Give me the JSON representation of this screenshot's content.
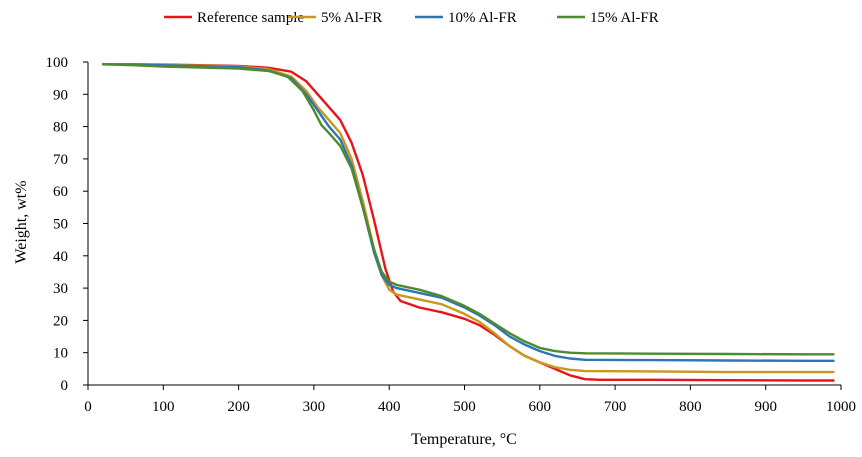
{
  "chart_data": {
    "type": "line",
    "title": "",
    "xlabel": "Temperature, °C",
    "ylabel": "Weight, wt%",
    "xlim": [
      0,
      1000
    ],
    "ylim": [
      0,
      100
    ],
    "x_ticks": [
      0,
      100,
      200,
      300,
      400,
      500,
      600,
      700,
      800,
      900,
      1000
    ],
    "y_ticks": [
      0,
      10,
      20,
      30,
      40,
      50,
      60,
      70,
      80,
      90,
      100
    ],
    "grid": false,
    "legend_position": "top",
    "series": [
      {
        "name": "Reference sample",
        "color": "#e8141b",
        "points": [
          [
            20,
            99.3
          ],
          [
            60,
            99.3
          ],
          [
            100,
            99.2
          ],
          [
            150,
            99
          ],
          [
            200,
            98.8
          ],
          [
            240,
            98.2
          ],
          [
            270,
            97
          ],
          [
            290,
            94
          ],
          [
            305,
            90
          ],
          [
            320,
            86
          ],
          [
            335,
            82
          ],
          [
            350,
            75
          ],
          [
            365,
            65
          ],
          [
            380,
            51
          ],
          [
            395,
            36
          ],
          [
            405,
            29
          ],
          [
            415,
            26
          ],
          [
            440,
            24
          ],
          [
            470,
            22.5
          ],
          [
            500,
            20.5
          ],
          [
            520,
            18.5
          ],
          [
            540,
            15.5
          ],
          [
            560,
            12
          ],
          [
            580,
            9
          ],
          [
            600,
            7
          ],
          [
            620,
            5
          ],
          [
            640,
            3
          ],
          [
            660,
            1.8
          ],
          [
            680,
            1.6
          ],
          [
            750,
            1.6
          ],
          [
            850,
            1.5
          ],
          [
            950,
            1.4
          ],
          [
            990,
            1.4
          ]
        ]
      },
      {
        "name": "5% Al-FR",
        "color": "#c8981f",
        "points": [
          [
            20,
            99.3
          ],
          [
            60,
            99.3
          ],
          [
            100,
            99.1
          ],
          [
            150,
            98.9
          ],
          [
            200,
            98.6
          ],
          [
            240,
            97.8
          ],
          [
            270,
            95.5
          ],
          [
            290,
            91
          ],
          [
            305,
            86
          ],
          [
            320,
            82
          ],
          [
            335,
            78
          ],
          [
            350,
            70
          ],
          [
            365,
            57
          ],
          [
            380,
            42
          ],
          [
            390,
            34
          ],
          [
            400,
            29.5
          ],
          [
            410,
            28
          ],
          [
            440,
            26.5
          ],
          [
            470,
            25
          ],
          [
            500,
            22
          ],
          [
            520,
            19.5
          ],
          [
            540,
            16
          ],
          [
            560,
            12
          ],
          [
            580,
            9
          ],
          [
            600,
            7
          ],
          [
            620,
            5.5
          ],
          [
            640,
            4.7
          ],
          [
            660,
            4.3
          ],
          [
            750,
            4.2
          ],
          [
            850,
            4.0
          ],
          [
            950,
            4.0
          ],
          [
            990,
            4.0
          ]
        ]
      },
      {
        "name": "10% Al-FR",
        "color": "#2e75b6",
        "points": [
          [
            20,
            99.3
          ],
          [
            60,
            99.2
          ],
          [
            100,
            99
          ],
          [
            150,
            98.7
          ],
          [
            200,
            98.4
          ],
          [
            240,
            97.4
          ],
          [
            270,
            95
          ],
          [
            290,
            90
          ],
          [
            305,
            85
          ],
          [
            320,
            80
          ],
          [
            335,
            76
          ],
          [
            350,
            68
          ],
          [
            365,
            55
          ],
          [
            380,
            41
          ],
          [
            390,
            34
          ],
          [
            400,
            31
          ],
          [
            410,
            30
          ],
          [
            440,
            28.5
          ],
          [
            470,
            27
          ],
          [
            500,
            24
          ],
          [
            520,
            21.5
          ],
          [
            540,
            18.5
          ],
          [
            560,
            15
          ],
          [
            580,
            12.5
          ],
          [
            600,
            10.5
          ],
          [
            620,
            9
          ],
          [
            640,
            8.2
          ],
          [
            660,
            7.8
          ],
          [
            750,
            7.7
          ],
          [
            850,
            7.6
          ],
          [
            950,
            7.5
          ],
          [
            990,
            7.5
          ]
        ]
      },
      {
        "name": "15% Al-FR",
        "color": "#4e8a2e",
        "points": [
          [
            20,
            99.3
          ],
          [
            60,
            99
          ],
          [
            100,
            98.6
          ],
          [
            150,
            98.3
          ],
          [
            200,
            98
          ],
          [
            240,
            97.2
          ],
          [
            265,
            95.5
          ],
          [
            285,
            91
          ],
          [
            300,
            85
          ],
          [
            310,
            80.5
          ],
          [
            320,
            78
          ],
          [
            335,
            74
          ],
          [
            350,
            67
          ],
          [
            365,
            55
          ],
          [
            380,
            42
          ],
          [
            390,
            35
          ],
          [
            400,
            32
          ],
          [
            410,
            31
          ],
          [
            440,
            29.5
          ],
          [
            470,
            27.5
          ],
          [
            500,
            24.5
          ],
          [
            520,
            22
          ],
          [
            540,
            19
          ],
          [
            560,
            16
          ],
          [
            580,
            13.5
          ],
          [
            600,
            11.5
          ],
          [
            620,
            10.5
          ],
          [
            640,
            10
          ],
          [
            660,
            9.8
          ],
          [
            750,
            9.7
          ],
          [
            850,
            9.6
          ],
          [
            950,
            9.5
          ],
          [
            990,
            9.5
          ]
        ]
      }
    ]
  }
}
